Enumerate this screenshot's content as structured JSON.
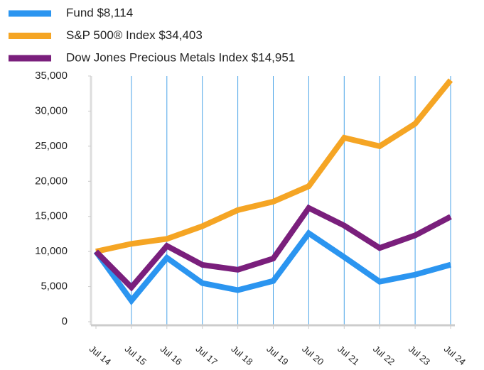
{
  "chart_data": {
    "type": "line",
    "categories": [
      "Jul 14",
      "Jul 15",
      "Jul 16",
      "Jul 17",
      "Jul 18",
      "Jul 19",
      "Jul 20",
      "Jul 21",
      "Jul 22",
      "Jul 23",
      "Jul 24"
    ],
    "series": [
      {
        "name": "Fund $8,114",
        "color": "#2b95f0",
        "values": [
          10000,
          3000,
          9100,
          5500,
          4500,
          5800,
          12600,
          9200,
          5700,
          6700,
          8114
        ]
      },
      {
        "name": "S&P 500® Index $34,403",
        "color": "#f5a524",
        "values": [
          10000,
          11100,
          11800,
          13600,
          15900,
          17100,
          19300,
          26200,
          25000,
          28200,
          34403
        ]
      },
      {
        "name": "Dow Jones Precious Metals Index $14,951",
        "color": "#7a1f7c",
        "values": [
          10000,
          4900,
          10800,
          8100,
          7400,
          9000,
          16200,
          13700,
          10500,
          12300,
          14951
        ]
      }
    ],
    "ylim": [
      0,
      35000
    ],
    "yticks": [
      0,
      {
        "value": 5000,
        "label": "5,000"
      },
      {
        "value": 10000,
        "label": "10,000"
      },
      {
        "value": 15000,
        "label": "15,000"
      },
      {
        "value": 20000,
        "label": "20,000"
      },
      {
        "value": 25000,
        "label": "25,000"
      },
      {
        "value": 30000,
        "label": "30,000"
      },
      {
        "value": 35000,
        "label": "35,000"
      }
    ],
    "grid": true,
    "legend": "top"
  }
}
